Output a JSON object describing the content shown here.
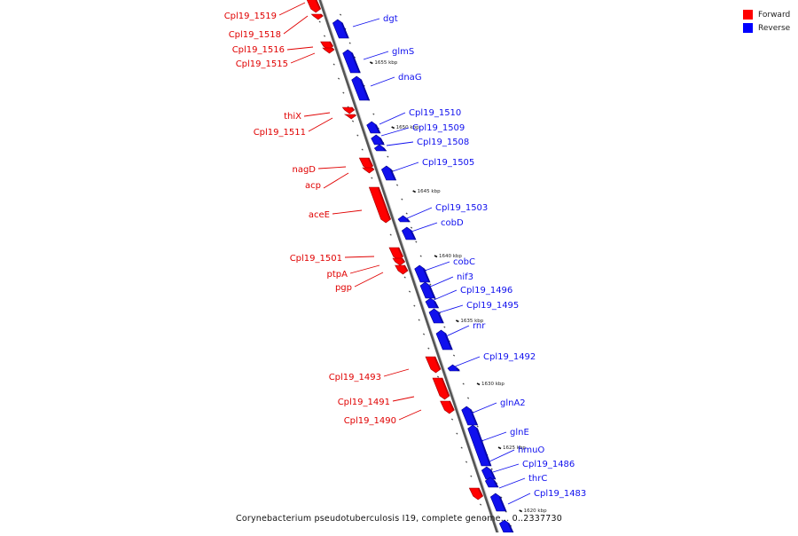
{
  "legend": [
    {
      "label": "Forward",
      "color": "#ff0000"
    },
    {
      "label": "Reverse",
      "color": "#0000ff"
    }
  ],
  "caption": "Corynebacterium pseudotuberculosis I19, complete genome... 0..2337730",
  "colors": {
    "forward": "#ff0000",
    "reverse": "#1010ee",
    "backbone": "#808080"
  },
  "kbp_marks": [
    "1655 kbp",
    "1650 kbp",
    "1645 kbp",
    "1640 kbp",
    "1635 kbp",
    "1630 kbp",
    "1625 kbp",
    "1620 kbp"
  ],
  "forward_genes": [
    "Cpl19_1519",
    "Cpl19_1518",
    "Cpl19_1516",
    "Cpl19_1515",
    "thiX",
    "Cpl19_1511",
    "nagD",
    "acp",
    "aceE",
    "Cpl19_1501",
    "ptpA",
    "pgp",
    "Cpl19_1493",
    "Cpl19_1491",
    "Cpl19_1490"
  ],
  "reverse_genes": [
    "dgt",
    "glmS",
    "dnaG",
    "Cpl19_1510",
    "Cpl19_1509",
    "Cpl19_1508",
    "Cpl19_1505",
    "Cpl19_1503",
    "cobD",
    "cobC",
    "nif3",
    "Cpl19_1496",
    "Cpl19_1495",
    "rnr",
    "Cpl19_1492",
    "glnA2",
    "glnE",
    "hmuO",
    "Cpl19_1486",
    "thrC",
    "Cpl19_1483"
  ]
}
